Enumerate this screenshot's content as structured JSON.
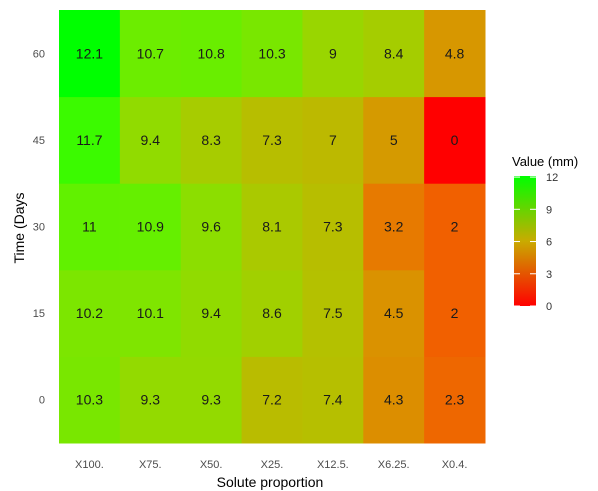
{
  "chart_data": {
    "type": "heatmap",
    "title": "",
    "xlabel": "Solute proportion",
    "ylabel": "Time (Days",
    "x_categories": [
      "X100.",
      "X75.",
      "X50.",
      "X25.",
      "X12.5.",
      "X6.25.",
      "X0.4."
    ],
    "y_categories": [
      "0",
      "15",
      "30",
      "45",
      "60"
    ],
    "values": [
      [
        10.3,
        9.3,
        9.3,
        7.2,
        7.4,
        4.3,
        2.3
      ],
      [
        10.2,
        10.1,
        9.4,
        8.6,
        7.5,
        4.5,
        2
      ],
      [
        11,
        10.9,
        9.6,
        8.1,
        7.3,
        3.2,
        2
      ],
      [
        11.7,
        9.4,
        8.3,
        7.3,
        7,
        5,
        0
      ],
      [
        12.1,
        10.7,
        10.8,
        10.3,
        9,
        8.4,
        4.8
      ]
    ],
    "legend": {
      "title": "Value (mm)",
      "ticks": [
        "12",
        "9",
        "6",
        "3",
        "0"
      ],
      "range": [
        0,
        12.1
      ],
      "low_color": "#ff0000",
      "high_color": "#00ff00"
    },
    "grid": false
  }
}
